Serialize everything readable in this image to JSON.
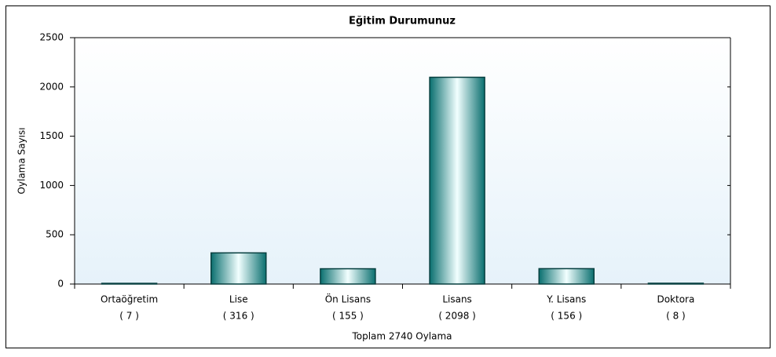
{
  "chart_data": {
    "type": "bar",
    "title": "Eğitim Durumunuz",
    "categories": [
      "Ortaöğretim",
      "Lise",
      "Ön Lisans",
      "Lisans",
      "Y. Lisans",
      "Doktora"
    ],
    "values": [
      7,
      316,
      155,
      2098,
      156,
      8
    ],
    "value_labels": [
      "( 7 )",
      "( 316 )",
      "( 155 )",
      "( 2098 )",
      "( 156 )",
      "( 8 )"
    ],
    "x_label": "Toplam 2740 Oylama",
    "y_label": "Oylama Sayısı",
    "color": "#0f8585",
    "ylim": [
      0,
      2500
    ],
    "yticks": [
      0,
      500,
      1000,
      1500,
      2000,
      2500
    ],
    "grid": false
  }
}
